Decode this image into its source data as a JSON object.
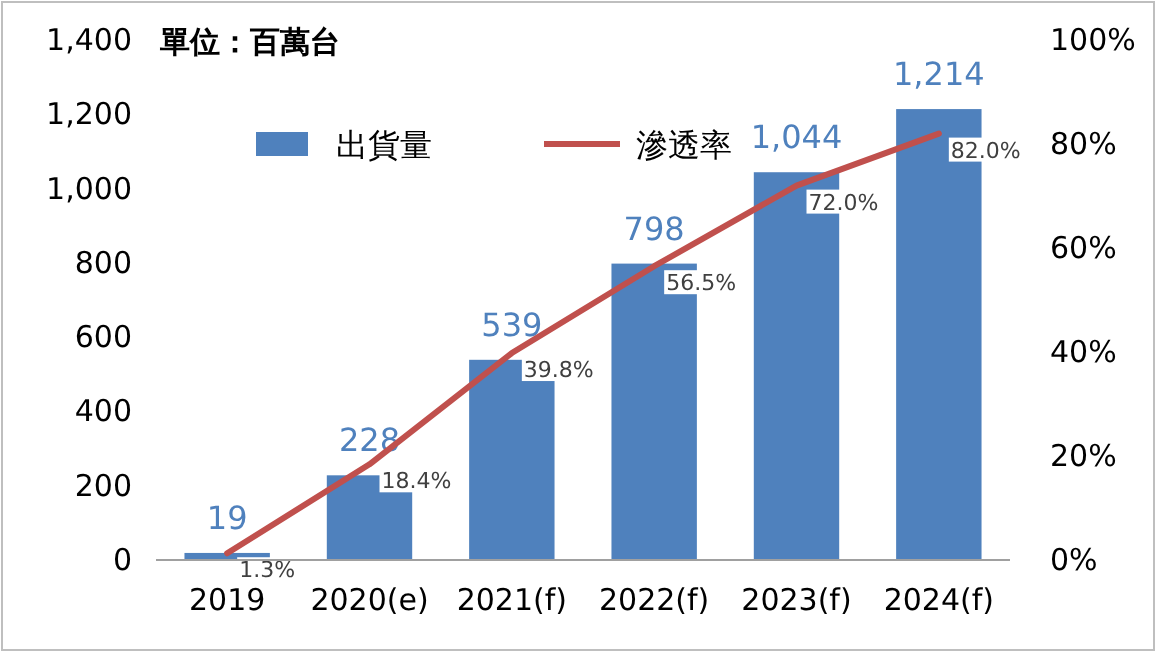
{
  "chart_data": {
    "type": "bar",
    "categories": [
      "2019",
      "2020(e)",
      "2021(f)",
      "2022(f)",
      "2023(f)",
      "2024(f)"
    ],
    "series": [
      {
        "name": "出貨量",
        "color": "#4f81bd",
        "values": [
          19,
          228,
          539,
          798,
          1044,
          1214
        ],
        "value_labels": [
          "19",
          "228",
          "539",
          "798",
          "1,044",
          "1,214"
        ]
      },
      {
        "name": "滲透率",
        "type": "line",
        "axis": "y2",
        "color": "#c0504d",
        "values": [
          1.3,
          18.4,
          39.8,
          56.5,
          72.0,
          82.0
        ],
        "value_labels": [
          "1.3%",
          "18.4%",
          "39.8%",
          "56.5%",
          "72.0%",
          "82.0%"
        ]
      }
    ],
    "ylim": [
      0,
      1400
    ],
    "yticks": [
      0,
      200,
      400,
      600,
      800,
      {
        "value": 1000,
        "label": "1,000"
      },
      {
        "value": 1200,
        "label": "1,200"
      },
      {
        "value": 1400,
        "label": "1,400"
      }
    ],
    "y2lim": [
      0,
      100
    ],
    "y2ticks": [
      {
        "value": 0,
        "label": "0%"
      },
      {
        "value": 20,
        "label": "20%"
      },
      {
        "value": 40,
        "label": "40%"
      },
      {
        "value": 60,
        "label": "60%"
      },
      {
        "value": 80,
        "label": "80%"
      },
      {
        "value": 100,
        "label": "100%"
      }
    ],
    "legend": "top",
    "annotations": [
      "單位：百萬台"
    ]
  }
}
